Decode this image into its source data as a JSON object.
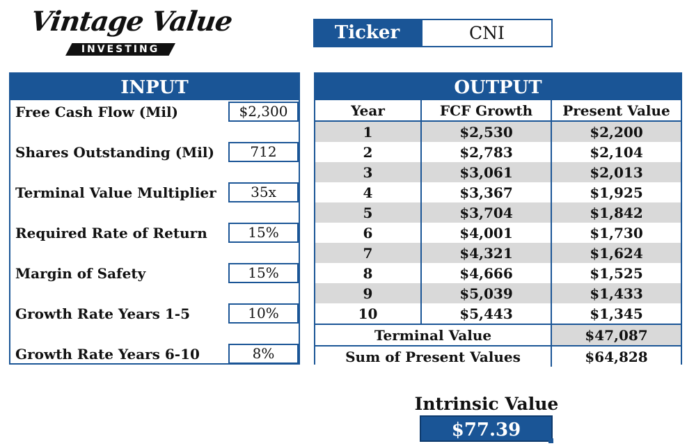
{
  "logo": {
    "script_text": "Vintage Value",
    "bar_text": "INVESTING"
  },
  "ticker": {
    "label": "Ticker",
    "value": "CNI"
  },
  "input": {
    "header": "INPUT",
    "rows": [
      {
        "label": "Free Cash Flow (Mil)",
        "value": "$2,300"
      },
      {
        "label": "Shares Outstanding (Mil)",
        "value": "712"
      },
      {
        "label": "Terminal Value Multiplier",
        "value": "35x"
      },
      {
        "label": "Required Rate of Return",
        "value": "15%"
      },
      {
        "label": "Margin of Safety",
        "value": "15%"
      },
      {
        "label": "Growth Rate Years 1-5",
        "value": "10%"
      },
      {
        "label": "Growth Rate Years 6-10",
        "value": "8%"
      }
    ]
  },
  "output": {
    "header": "OUTPUT",
    "columns": [
      "Year",
      "FCF Growth",
      "Present Value"
    ],
    "rows": [
      {
        "year": "1",
        "fcf": "$2,530",
        "pv": "$2,200"
      },
      {
        "year": "2",
        "fcf": "$2,783",
        "pv": "$2,104"
      },
      {
        "year": "3",
        "fcf": "$3,061",
        "pv": "$2,013"
      },
      {
        "year": "4",
        "fcf": "$3,367",
        "pv": "$1,925"
      },
      {
        "year": "5",
        "fcf": "$3,704",
        "pv": "$1,842"
      },
      {
        "year": "6",
        "fcf": "$4,001",
        "pv": "$1,730"
      },
      {
        "year": "7",
        "fcf": "$4,321",
        "pv": "$1,624"
      },
      {
        "year": "8",
        "fcf": "$4,666",
        "pv": "$1,525"
      },
      {
        "year": "9",
        "fcf": "$5,039",
        "pv": "$1,433"
      },
      {
        "year": "10",
        "fcf": "$5,443",
        "pv": "$1,345"
      }
    ],
    "terminal_value": {
      "label": "Terminal Value",
      "value": "$47,087"
    },
    "sum_pv": {
      "label": "Sum of Present Values",
      "value": "$64,828"
    }
  },
  "intrinsic": {
    "label": "Intrinsic Value",
    "value": "$77.39"
  },
  "colors": {
    "accent": "#1a5596",
    "shade": "#d9d9d9"
  }
}
